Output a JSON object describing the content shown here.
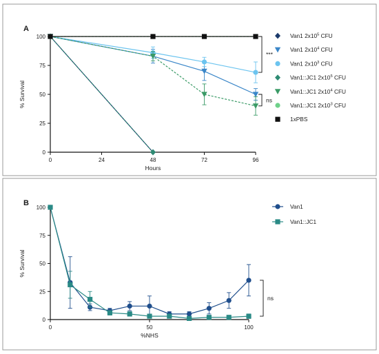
{
  "chart_data": [
    {
      "type": "line",
      "panel": "A",
      "title": "",
      "xlabel": "Hours",
      "ylabel": "% Survival",
      "x": [
        0,
        48,
        72,
        96
      ],
      "xticks": [
        "0",
        "24",
        "48",
        "72",
        "96"
      ],
      "xtick_values": [
        0,
        24,
        48,
        72,
        96
      ],
      "yticks": [
        "0",
        "25",
        "50",
        "75",
        "100"
      ],
      "ytick_values": [
        0,
        25,
        50,
        75,
        100
      ],
      "xlim": [
        0,
        96
      ],
      "ylim": [
        0,
        100
      ],
      "grid": false,
      "legend_position": "right",
      "series": [
        {
          "name": "Van1 2x10",
          "sup": "5",
          "unit": " CFU",
          "marker": "diamond",
          "color": "#1b3a6b",
          "dashed": false,
          "points": [
            [
              0,
              100
            ],
            [
              48,
              0
            ]
          ],
          "err": [
            null,
            null
          ]
        },
        {
          "name": "Van1 2x10",
          "sup": "4",
          "unit": " CFU",
          "marker": "triangle",
          "color": "#3a86c8",
          "dashed": false,
          "points": [
            [
              0,
              100
            ],
            [
              48,
              83
            ],
            [
              72,
              70
            ],
            [
              96,
              50
            ]
          ],
          "err": [
            null,
            6,
            8,
            5
          ]
        },
        {
          "name": "Van1 2x10",
          "sup": "3",
          "unit": " CFU",
          "marker": "circle",
          "color": "#6cc4ef",
          "dashed": false,
          "points": [
            [
              0,
              100
            ],
            [
              48,
              86
            ],
            [
              72,
              78
            ],
            [
              96,
              69
            ]
          ],
          "err": [
            null,
            5,
            4,
            9
          ]
        },
        {
          "name": "Van1::JC1 2x10",
          "sup": "5",
          "unit": " CFU",
          "marker": "diamond",
          "color": "#2e8b73",
          "dashed": true,
          "points": [
            [
              0,
              100
            ],
            [
              48,
              0
            ]
          ],
          "err": [
            null,
            null
          ]
        },
        {
          "name": "Van1::JC1 2x10",
          "sup": "4",
          "unit": " CFU",
          "marker": "triangle",
          "color": "#3a9a66",
          "dashed": true,
          "points": [
            [
              0,
              100
            ],
            [
              48,
              83
            ],
            [
              72,
              50
            ],
            [
              96,
              40
            ]
          ],
          "err": [
            null,
            4,
            9,
            8
          ]
        },
        {
          "name": "Van1::JC1 2x10",
          "sup": "3",
          "unit": " CFU",
          "marker": "circle",
          "color": "#6fd18a",
          "dashed": true,
          "points": [
            [
              0,
              100
            ],
            [
              48,
              100
            ],
            [
              72,
              100
            ],
            [
              96,
              100
            ]
          ],
          "err": [
            null,
            null,
            null,
            null
          ]
        },
        {
          "name": "1xPBS",
          "sup": "",
          "unit": "",
          "marker": "square",
          "color": "#111111",
          "dashed": false,
          "points": [
            [
              0,
              100
            ],
            [
              48,
              100
            ],
            [
              72,
              100
            ],
            [
              96,
              100
            ]
          ],
          "err": [
            null,
            null,
            null,
            null
          ]
        }
      ],
      "annotations": [
        {
          "text": "***",
          "y_top": 100,
          "y_bottom": 69
        },
        {
          "text": "ns",
          "y_top": 50,
          "y_bottom": 40
        }
      ]
    },
    {
      "type": "line",
      "panel": "B",
      "title": "",
      "xlabel": "%NHS",
      "ylabel": "% Survival",
      "xticks": [
        "0",
        "50",
        "100"
      ],
      "xtick_values": [
        0,
        50,
        100
      ],
      "yticks": [
        "0",
        "25",
        "50",
        "75",
        "100"
      ],
      "ytick_values": [
        0,
        25,
        50,
        75,
        100
      ],
      "xlim": [
        0,
        100
      ],
      "ylim": [
        0,
        100
      ],
      "grid": false,
      "legend_position": "right",
      "series": [
        {
          "name": "Van1",
          "marker": "circle",
          "color": "#1f4e8c",
          "x": [
            0,
            10,
            20,
            30,
            40,
            50,
            60,
            70,
            80,
            90,
            100
          ],
          "y": [
            100,
            33,
            11,
            8,
            12,
            12,
            5,
            5,
            10,
            17,
            35
          ],
          "err": [
            0,
            23,
            3,
            2,
            4,
            9,
            2,
            2,
            5,
            7,
            14
          ]
        },
        {
          "name": "Van1::JC1",
          "marker": "square",
          "color": "#2a8a86",
          "x": [
            0,
            10,
            20,
            30,
            40,
            50,
            60,
            70,
            80,
            90,
            100
          ],
          "y": [
            100,
            31,
            18,
            6,
            5,
            3,
            3,
            1,
            2,
            2,
            3
          ],
          "err": [
            0,
            12,
            7,
            2,
            2,
            1,
            1,
            1,
            1,
            1,
            2
          ]
        }
      ],
      "annotations": [
        {
          "text": "ns",
          "y_top": 35,
          "y_bottom": 3
        }
      ]
    }
  ]
}
